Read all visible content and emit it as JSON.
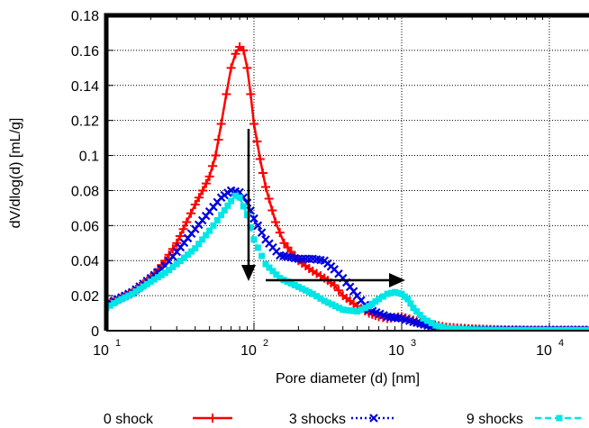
{
  "chart_data": {
    "type": "line",
    "xscale": "log",
    "xlim": [
      10,
      30000
    ],
    "ylim": [
      0,
      0.18
    ],
    "xlabel": "Pore diameter (d) [nm]",
    "ylabel": "dV/dlog(d) [mL/g]",
    "grid": true,
    "legend_position": "bottom",
    "x_ticks": [
      {
        "value": 10,
        "label": "10",
        "exp": "1"
      },
      {
        "value": 100,
        "label": "10",
        "exp": "2"
      },
      {
        "value": 1000,
        "label": "10",
        "exp": "3"
      },
      {
        "value": 10000,
        "label": "10",
        "exp": "4"
      }
    ],
    "y_ticks": [
      {
        "value": 0,
        "label": "0"
      },
      {
        "value": 0.02,
        "label": "0.02"
      },
      {
        "value": 0.04,
        "label": "0.04"
      },
      {
        "value": 0.06,
        "label": "0.06"
      },
      {
        "value": 0.08,
        "label": "0.08"
      },
      {
        "value": 0.1,
        "label": "0.1"
      },
      {
        "value": 0.12,
        "label": "0.12"
      },
      {
        "value": 0.14,
        "label": "0.14"
      },
      {
        "value": 0.16,
        "label": "0.16"
      },
      {
        "value": 0.18,
        "label": "0.18"
      }
    ],
    "series": [
      {
        "name": "0 shock",
        "color": "#ff0000",
        "marker": "plus",
        "dash": "solid",
        "x": [
          10,
          12,
          15,
          20,
          25,
          30,
          35,
          40,
          45,
          50,
          55,
          60,
          65,
          70,
          75,
          80,
          85,
          90,
          95,
          100,
          110,
          120,
          140,
          160,
          200,
          250,
          300,
          350,
          400,
          500,
          600,
          700,
          800,
          1000,
          1200,
          1500,
          2000,
          3000,
          5000,
          8000,
          10000,
          12000,
          15000,
          20000,
          25000,
          30000
        ],
        "y": [
          0.015,
          0.018,
          0.022,
          0.03,
          0.04,
          0.05,
          0.062,
          0.072,
          0.08,
          0.088,
          0.1,
          0.118,
          0.135,
          0.15,
          0.158,
          0.162,
          0.16,
          0.15,
          0.135,
          0.118,
          0.098,
          0.082,
          0.062,
          0.05,
          0.04,
          0.034,
          0.03,
          0.026,
          0.02,
          0.014,
          0.01,
          0.008,
          0.007,
          0.008,
          0.006,
          0.004,
          0.002,
          0.001,
          0.0005,
          0.0003,
          0.0003,
          0.0003,
          0.0003,
          0.0003,
          0.005,
          0.025
        ]
      },
      {
        "name": "3 shocks",
        "color": "#0000dd",
        "marker": "x",
        "dash": "dotted",
        "x": [
          10,
          12,
          15,
          20,
          25,
          30,
          40,
          50,
          60,
          70,
          80,
          90,
          100,
          120,
          150,
          200,
          250,
          300,
          350,
          400,
          500,
          600,
          800,
          1000,
          1200,
          1500,
          2000,
          3000,
          5000,
          10000,
          20000,
          30000
        ],
        "y": [
          0.015,
          0.018,
          0.022,
          0.03,
          0.037,
          0.045,
          0.058,
          0.068,
          0.076,
          0.08,
          0.079,
          0.073,
          0.064,
          0.052,
          0.043,
          0.041,
          0.041,
          0.04,
          0.035,
          0.03,
          0.02,
          0.012,
          0.008,
          0.007,
          0.005,
          0.003,
          0.001,
          0.0005,
          0.0003,
          0.0003,
          0.0003,
          0.0003
        ]
      },
      {
        "name": "9 shocks",
        "color": "#00e5e5",
        "marker": "square",
        "dash": "dashed",
        "x": [
          10,
          12,
          15,
          20,
          25,
          30,
          40,
          50,
          60,
          70,
          75,
          80,
          90,
          100,
          120,
          150,
          200,
          250,
          300,
          400,
          500,
          600,
          700,
          800,
          900,
          1000,
          1100,
          1200,
          1400,
          1700,
          2000,
          3000,
          5000,
          10000,
          20000,
          30000
        ],
        "y": [
          0.013,
          0.017,
          0.021,
          0.028,
          0.033,
          0.038,
          0.047,
          0.057,
          0.066,
          0.074,
          0.077,
          0.076,
          0.066,
          0.052,
          0.038,
          0.03,
          0.025,
          0.021,
          0.017,
          0.012,
          0.011,
          0.014,
          0.018,
          0.021,
          0.022,
          0.021,
          0.018,
          0.013,
          0.007,
          0.003,
          0.0015,
          0.0006,
          0.0003,
          0.0003,
          0.0003,
          0.0003
        ]
      }
    ]
  }
}
